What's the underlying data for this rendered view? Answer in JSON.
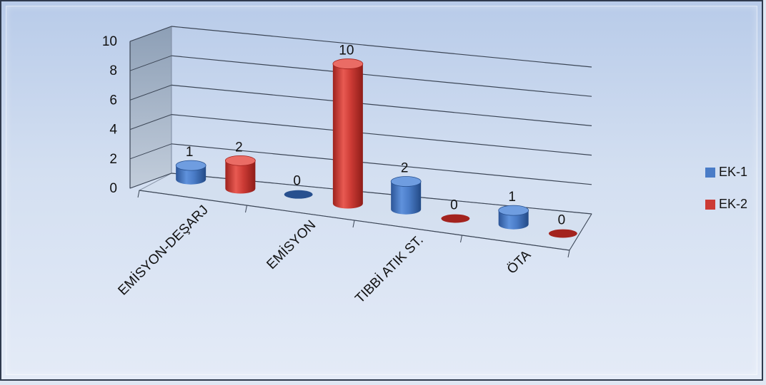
{
  "chart_data": {
    "type": "bar",
    "subtype": "3d-cylinder",
    "title": "",
    "xlabel": "",
    "ylabel": "",
    "ylim": [
      0,
      10
    ],
    "yticks": [
      0,
      2,
      4,
      6,
      8,
      10
    ],
    "categories": [
      "EMİSYON-DEŞARJ",
      "EMİSYON",
      "TIBBİ ATIK ST.",
      "ÖTA"
    ],
    "series": [
      {
        "name": "EK-1",
        "values": [
          1,
          0,
          2,
          1
        ],
        "color": "#4a7cc7"
      },
      {
        "name": "EK-2",
        "values": [
          2,
          10,
          0,
          0
        ],
        "color": "#cc3b35"
      }
    ],
    "grid": true,
    "legend": "right"
  }
}
